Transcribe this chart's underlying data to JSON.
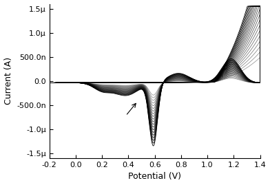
{
  "xlim": [
    -0.2,
    1.4
  ],
  "ylim": [
    -1.6e-06,
    1.6e-06
  ],
  "xlabel": "Potential (V)",
  "ylabel": "Current (A)",
  "xticks": [
    -0.2,
    0.0,
    0.2,
    0.4,
    0.6,
    0.8,
    1.0,
    1.2,
    1.4
  ],
  "yticks": [
    -1.5e-06,
    -1e-06,
    -5e-07,
    0.0,
    5e-07,
    1e-06,
    1.5e-06
  ],
  "ytick_labels": [
    "-1.5μ",
    "-1.0μ",
    "-500.0n",
    "0.0",
    "500.0n",
    "1.0μ",
    "1.5μ"
  ],
  "n_scans": 20,
  "line_color": "#000000",
  "line_width": 0.6,
  "background_color": "#ffffff",
  "figsize": [
    3.92,
    2.69
  ],
  "dpi": 100
}
